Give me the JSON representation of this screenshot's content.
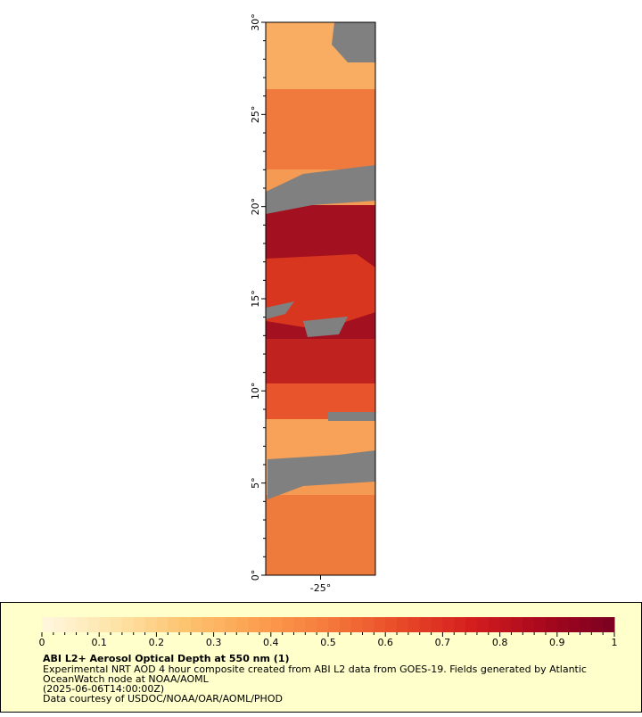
{
  "chart_data": {
    "type": "map",
    "title": "ABI L2+ Aerosol Optical Depth at 550 nm (1)",
    "description_lines": [
      "Experimental NRT AOD 4 hour composite created from ABI L2 data from GOES-19. Fields generated by Atlantic",
      "OceanWatch node at NOAA/AOML",
      "(2025-06-06T14:00:00Z)",
      "Data courtesy of USDOC/NOAA/OAR/AOML/PHOD"
    ],
    "ylim": [
      0,
      30
    ],
    "yticks": [
      {
        "value": 0,
        "label": "0°"
      },
      {
        "value": 5,
        "label": "5°"
      },
      {
        "value": 10,
        "label": "10°"
      },
      {
        "value": 15,
        "label": "15°"
      },
      {
        "value": 20,
        "label": "20°"
      },
      {
        "value": 25,
        "label": "25°"
      },
      {
        "value": 30,
        "label": "30°"
      }
    ],
    "xlim": [
      -26.5,
      -23.5
    ],
    "xticks": [
      {
        "value": -25,
        "label": "-25°"
      }
    ],
    "colorbar": {
      "range": [
        0,
        1
      ],
      "ticks": [
        0,
        0.1,
        0.2,
        0.3,
        0.4,
        0.5,
        0.6,
        0.7,
        0.8,
        0.9,
        1
      ],
      "palette": [
        "#fff8e0",
        "#fee4a8",
        "#fdc470",
        "#fca050",
        "#f57a3c",
        "#e84a28",
        "#d41e1e",
        "#a8081e",
        "#7a0022"
      ]
    },
    "missing_color": "#808080"
  }
}
